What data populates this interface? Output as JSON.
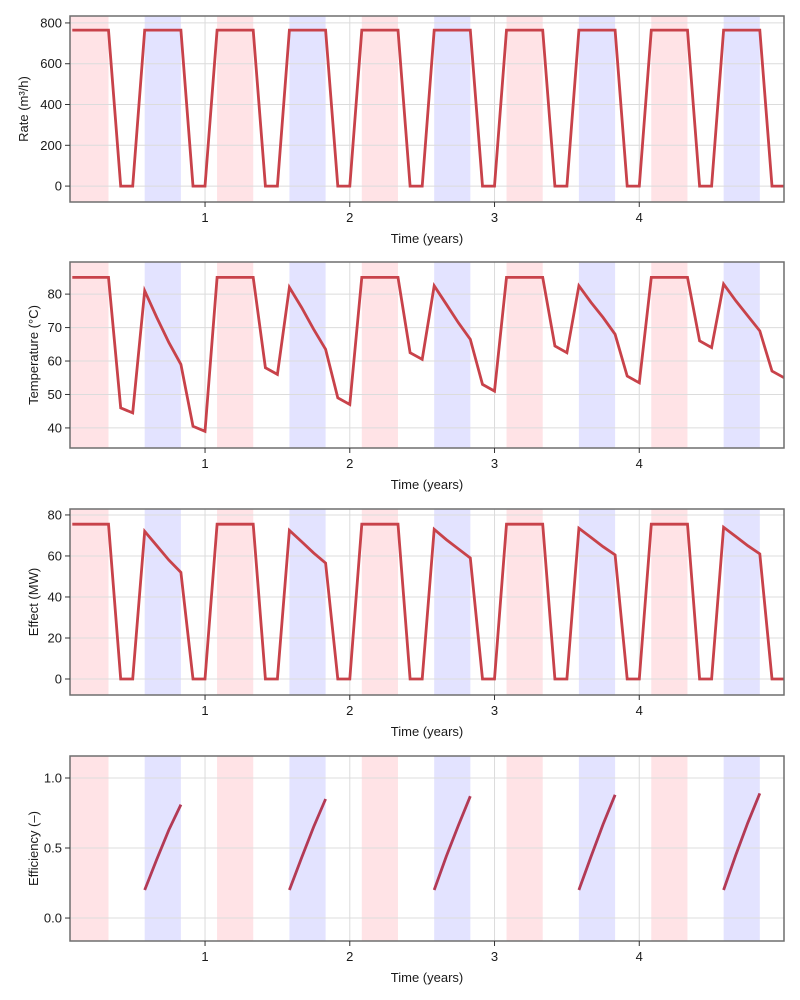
{
  "colors": {
    "line": "#c8424a",
    "efficiency_line": "#b33a55",
    "heating_band": "#ffe3e6",
    "cooling_band": "#e3e3ff",
    "grid": "#dcdcdc",
    "axis": "#6e6e6e"
  },
  "chart_data": [
    {
      "type": "line",
      "id": "rate",
      "title": "",
      "xlabel": "Time (years)",
      "ylabel": "Rate (m³/h)",
      "xlim": [
        0.067,
        5.0
      ],
      "ylim": [
        -78,
        834
      ],
      "xticks": [
        1,
        2,
        3,
        4
      ],
      "xtick_labels": [
        "1",
        "2",
        "3",
        "4"
      ],
      "yticks": [
        0,
        200,
        400,
        600,
        800
      ],
      "ytick_labels": [
        "0",
        "200",
        "400",
        "600",
        "800"
      ],
      "grid": true,
      "series": [
        {
          "name": "rate",
          "x": [
            0.083,
            0.167,
            0.25,
            0.333,
            0.417,
            0.5,
            0.583,
            0.667,
            0.75,
            0.833,
            0.917,
            1.0,
            1.083,
            1.167,
            1.25,
            1.333,
            1.417,
            1.5,
            1.583,
            1.667,
            1.75,
            1.833,
            1.917,
            2.0,
            2.083,
            2.167,
            2.25,
            2.333,
            2.417,
            2.5,
            2.583,
            2.667,
            2.75,
            2.833,
            2.917,
            3.0,
            3.083,
            3.167,
            3.25,
            3.333,
            3.417,
            3.5,
            3.583,
            3.667,
            3.75,
            3.833,
            3.917,
            4.0,
            4.083,
            4.167,
            4.25,
            4.333,
            4.417,
            4.5,
            4.583,
            4.667,
            4.75,
            4.833,
            4.917,
            5.0
          ],
          "y": [
            765,
            765,
            765,
            765,
            0,
            0,
            765,
            765,
            765,
            765,
            0,
            0,
            765,
            765,
            765,
            765,
            0,
            0,
            765,
            765,
            765,
            765,
            0,
            0,
            765,
            765,
            765,
            765,
            0,
            0,
            765,
            765,
            765,
            765,
            0,
            0,
            765,
            765,
            765,
            765,
            0,
            0,
            765,
            765,
            765,
            765,
            0,
            0,
            765,
            765,
            765,
            765,
            0,
            0,
            765,
            765,
            765,
            765,
            0,
            0
          ]
        }
      ]
    },
    {
      "type": "line",
      "id": "temperature",
      "title": "",
      "xlabel": "Time (years)",
      "ylabel": "Temperature (°C)",
      "xlim": [
        0.067,
        5.0
      ],
      "ylim": [
        34,
        89.6
      ],
      "xticks": [
        1,
        2,
        3,
        4
      ],
      "xtick_labels": [
        "1",
        "2",
        "3",
        "4"
      ],
      "yticks": [
        40,
        50,
        60,
        70,
        80
      ],
      "ytick_labels": [
        "40",
        "50",
        "60",
        "70",
        "80"
      ],
      "grid": true,
      "series": [
        {
          "name": "temperature",
          "x": [
            0.083,
            0.167,
            0.25,
            0.333,
            0.417,
            0.5,
            0.583,
            0.667,
            0.75,
            0.833,
            0.917,
            1.0,
            1.083,
            1.167,
            1.25,
            1.333,
            1.417,
            1.5,
            1.583,
            1.667,
            1.75,
            1.833,
            1.917,
            2.0,
            2.083,
            2.167,
            2.25,
            2.333,
            2.417,
            2.5,
            2.583,
            2.667,
            2.75,
            2.833,
            2.917,
            3.0,
            3.083,
            3.167,
            3.25,
            3.333,
            3.417,
            3.5,
            3.583,
            3.667,
            3.75,
            3.833,
            3.917,
            4.0,
            4.083,
            4.167,
            4.25,
            4.333,
            4.417,
            4.5,
            4.583,
            4.667,
            4.75,
            4.833,
            4.917,
            5.0
          ],
          "y": [
            85,
            85,
            85,
            85,
            46,
            44.5,
            81,
            73,
            65.5,
            59,
            40.5,
            39,
            85,
            85,
            85,
            85,
            58,
            56,
            82,
            76,
            69.5,
            63.5,
            49,
            47,
            85,
            85,
            85,
            85,
            62.5,
            60.5,
            82.5,
            77,
            71.5,
            66.5,
            53,
            51,
            85,
            85,
            85,
            85,
            64.5,
            62.5,
            82.5,
            77.5,
            73,
            68,
            55.5,
            53.5,
            85,
            85,
            85,
            85,
            66,
            64,
            83,
            78,
            73.5,
            69,
            57,
            55
          ]
        }
      ]
    },
    {
      "type": "line",
      "id": "effect",
      "title": "",
      "xlabel": "Time (years)",
      "ylabel": "Effect (MW)",
      "xlim": [
        0.067,
        5.0
      ],
      "ylim": [
        -7.8,
        82.9
      ],
      "xticks": [
        1,
        2,
        3,
        4
      ],
      "xtick_labels": [
        "1",
        "2",
        "3",
        "4"
      ],
      "yticks": [
        0,
        20,
        40,
        60,
        80
      ],
      "ytick_labels": [
        "0",
        "20",
        "40",
        "60",
        "80"
      ],
      "grid": true,
      "series": [
        {
          "name": "effect",
          "x": [
            0.083,
            0.167,
            0.25,
            0.333,
            0.417,
            0.5,
            0.583,
            0.667,
            0.75,
            0.833,
            0.917,
            1.0,
            1.083,
            1.167,
            1.25,
            1.333,
            1.417,
            1.5,
            1.583,
            1.667,
            1.75,
            1.833,
            1.917,
            2.0,
            2.083,
            2.167,
            2.25,
            2.333,
            2.417,
            2.5,
            2.583,
            2.667,
            2.75,
            2.833,
            2.917,
            3.0,
            3.083,
            3.167,
            3.25,
            3.333,
            3.417,
            3.5,
            3.583,
            3.667,
            3.75,
            3.833,
            3.917,
            4.0,
            4.083,
            4.167,
            4.25,
            4.333,
            4.417,
            4.5,
            4.583,
            4.667,
            4.75,
            4.833,
            4.917,
            5.0
          ],
          "y": [
            75.5,
            75.5,
            75.5,
            75.5,
            0,
            0,
            72,
            65,
            58,
            52,
            0,
            0,
            75.5,
            75.5,
            75.5,
            75.5,
            0,
            0,
            72.5,
            67,
            61.5,
            56.5,
            0,
            0,
            75.5,
            75.5,
            75.5,
            75.5,
            0,
            0,
            73,
            68,
            63.5,
            59,
            0,
            0,
            75.5,
            75.5,
            75.5,
            75.5,
            0,
            0,
            73.5,
            69,
            64.5,
            60.5,
            0,
            0,
            75.5,
            75.5,
            75.5,
            75.5,
            0,
            0,
            74,
            69.5,
            65,
            61,
            0,
            0
          ]
        }
      ]
    },
    {
      "type": "line",
      "id": "efficiency",
      "title": "",
      "xlabel": "Time (years)",
      "ylabel": "Efficiency (–)",
      "xlim": [
        0.067,
        5.0
      ],
      "ylim": [
        -0.164,
        1.157
      ],
      "xticks": [
        1,
        2,
        3,
        4
      ],
      "xtick_labels": [
        "1",
        "2",
        "3",
        "4"
      ],
      "yticks": [
        0.0,
        0.5,
        1.0
      ],
      "ytick_labels": [
        "0.0",
        "0.5",
        "1.0"
      ],
      "grid": true,
      "segments": [
        {
          "x": [
            0.583,
            0.667,
            0.75,
            0.833
          ],
          "y": [
            0.2,
            0.42,
            0.63,
            0.81
          ]
        },
        {
          "x": [
            1.583,
            1.667,
            1.75,
            1.833
          ],
          "y": [
            0.2,
            0.43,
            0.65,
            0.85
          ]
        },
        {
          "x": [
            2.583,
            2.667,
            2.75,
            2.833
          ],
          "y": [
            0.2,
            0.44,
            0.66,
            0.87
          ]
        },
        {
          "x": [
            3.583,
            3.667,
            3.75,
            3.833
          ],
          "y": [
            0.2,
            0.44,
            0.67,
            0.88
          ]
        },
        {
          "x": [
            4.583,
            4.667,
            4.75,
            4.833
          ],
          "y": [
            0.2,
            0.45,
            0.68,
            0.89
          ]
        }
      ]
    }
  ],
  "bands": {
    "heating": [
      [
        0.067,
        0.333
      ],
      [
        1.083,
        1.333
      ],
      [
        2.083,
        2.333
      ],
      [
        3.083,
        3.333
      ],
      [
        4.083,
        4.333
      ]
    ],
    "cooling": [
      [
        0.583,
        0.833
      ],
      [
        1.583,
        1.833
      ],
      [
        2.583,
        2.833
      ],
      [
        3.583,
        3.833
      ],
      [
        4.583,
        4.833
      ]
    ]
  }
}
